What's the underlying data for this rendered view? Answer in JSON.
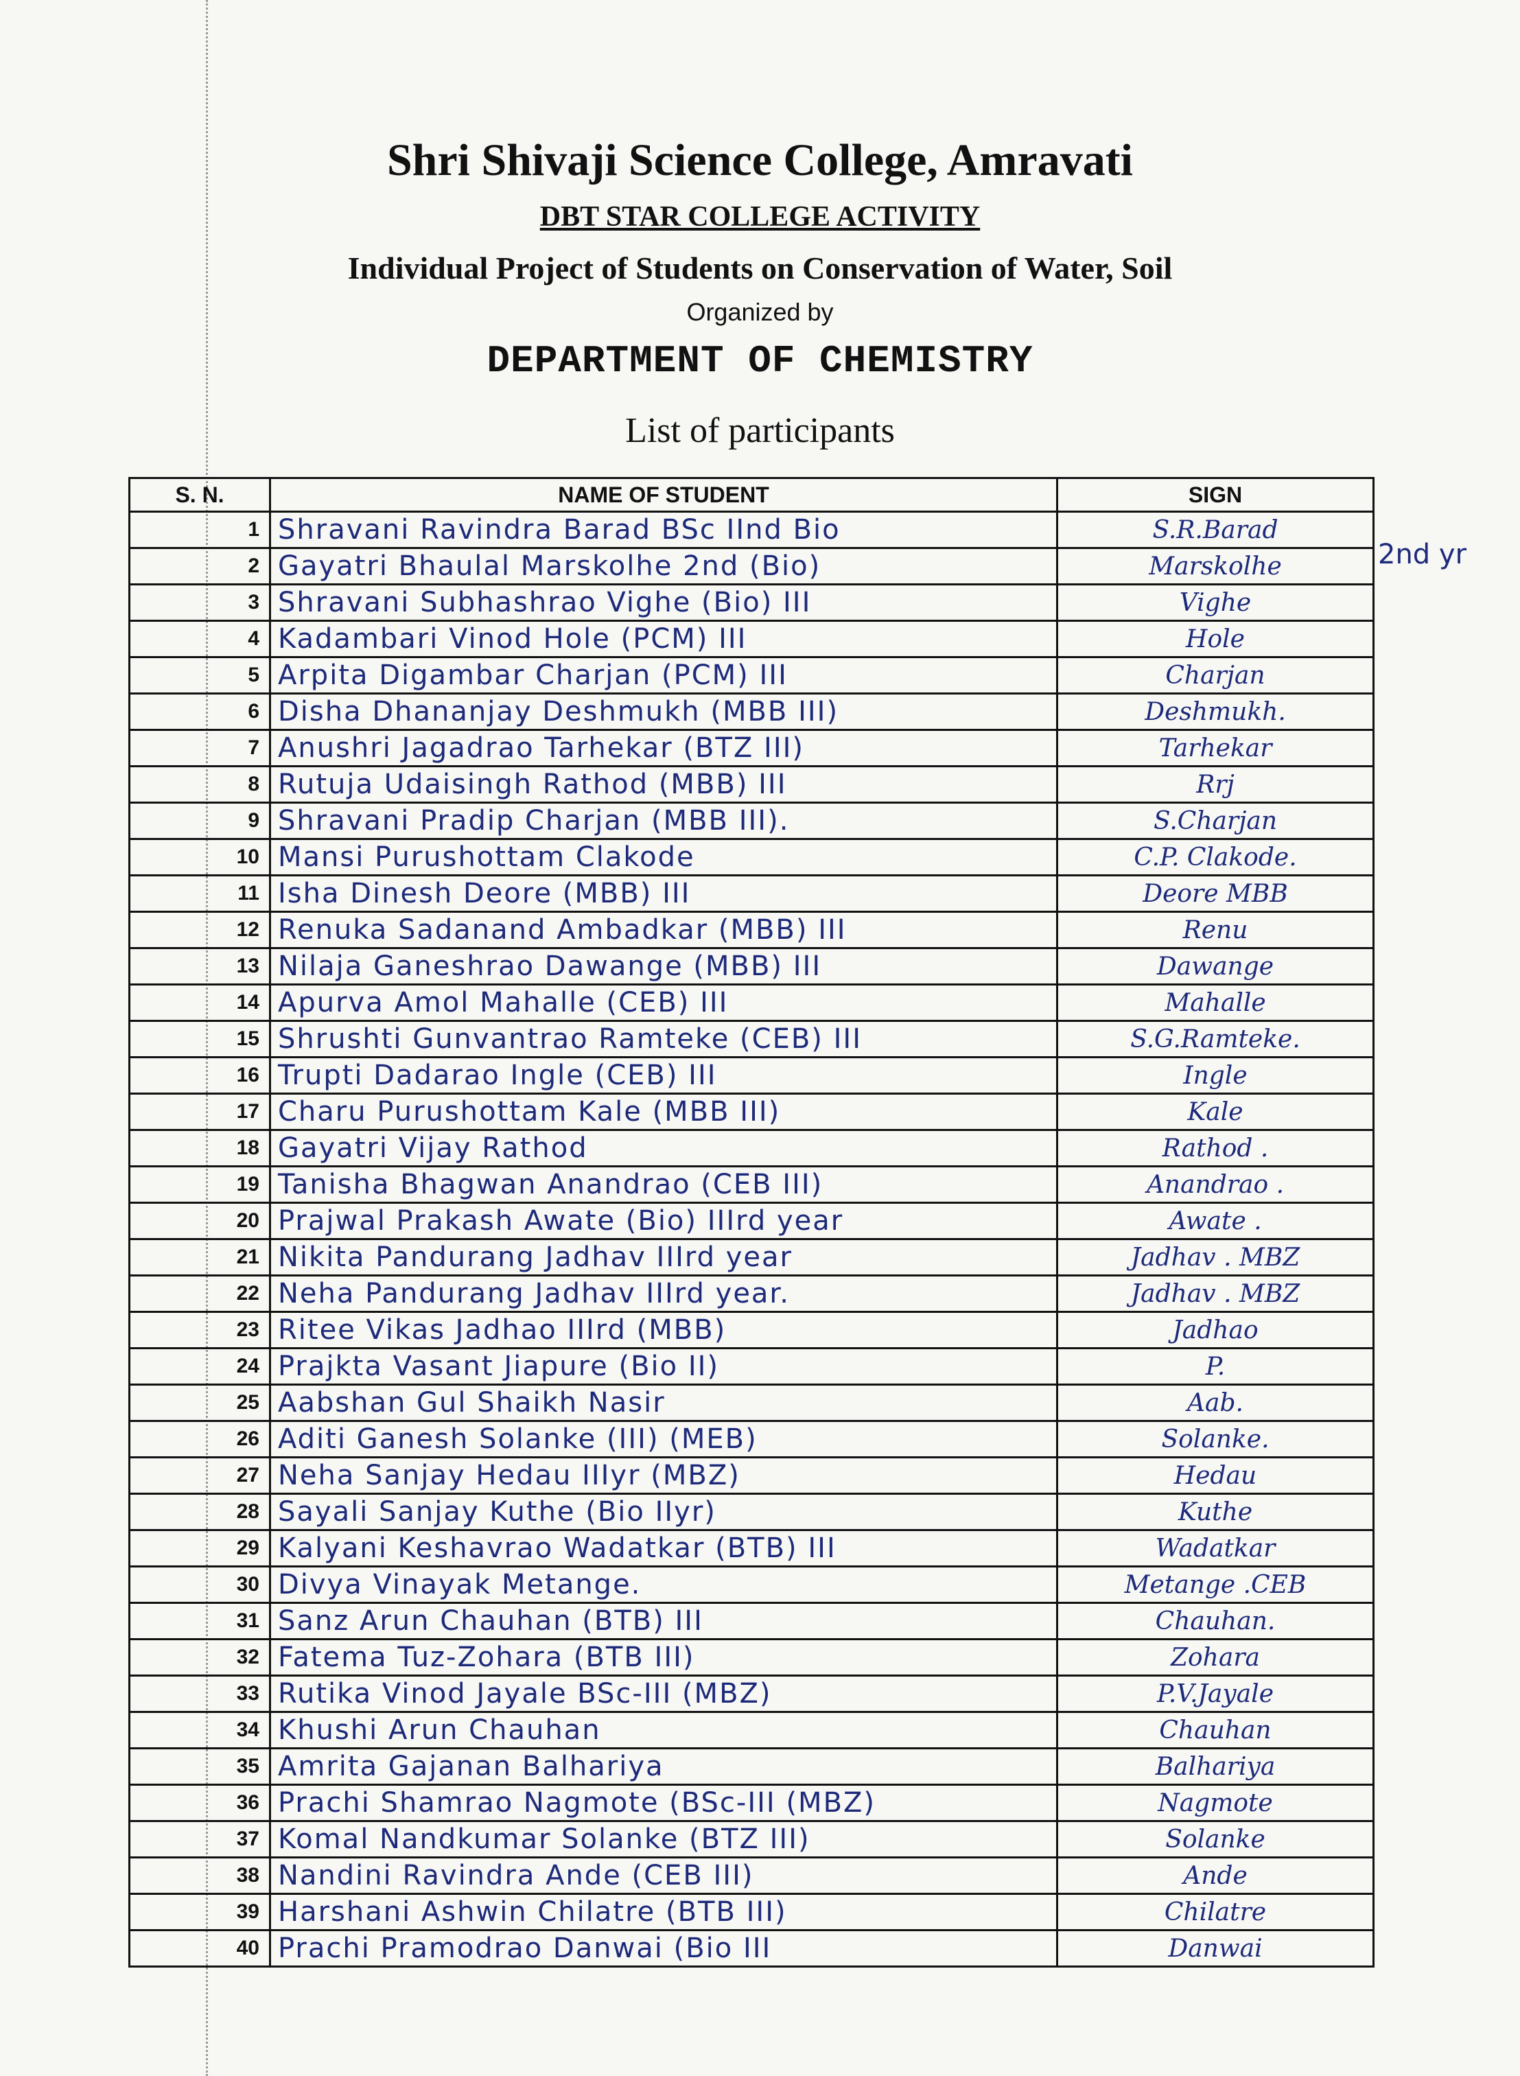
{
  "header": {
    "college": "Shri Shivaji Science College, Amravati",
    "activity": "DBT STAR COLLEGE ACTIVITY",
    "project": "Individual Project of Students on Conservation of Water, Soil",
    "organized_by": "Organized by",
    "department": "DEPARTMENT OF CHEMISTRY",
    "list_title": "List of participants"
  },
  "table": {
    "columns": [
      "S. N.",
      "NAME OF STUDENT",
      "SIGN"
    ],
    "rows": [
      {
        "sn": "1",
        "name": "Shravani Ravindra Barad BSc IInd Bio",
        "sign": "S.R.Barad"
      },
      {
        "sn": "2",
        "name": "Gayatri Bhaulal Marskolhe 2nd (Bio)",
        "sign": "Marskolhe"
      },
      {
        "sn": "3",
        "name": "Shravani Subhashrao Vighe (Bio) III",
        "sign": "Vighe"
      },
      {
        "sn": "4",
        "name": "Kadambari Vinod Hole (PCM) III",
        "sign": "Hole"
      },
      {
        "sn": "5",
        "name": "Arpita Digambar Charjan (PCM) III",
        "sign": "Charjan"
      },
      {
        "sn": "6",
        "name": "Disha Dhananjay Deshmukh (MBB III)",
        "sign": "Deshmukh."
      },
      {
        "sn": "7",
        "name": "Anushri Jagadrao Tarhekar (BTZ III)",
        "sign": "Tarhekar"
      },
      {
        "sn": "8",
        "name": "Rutuja Udaisingh Rathod (MBB) III",
        "sign": "Rrj"
      },
      {
        "sn": "9",
        "name": "Shravani Pradip Charjan (MBB III).",
        "sign": "S.Charjan"
      },
      {
        "sn": "10",
        "name": "Mansi Purushottam Clakode",
        "sign": "C.P. Clakode."
      },
      {
        "sn": "11",
        "name": "Isha Dinesh Deore (MBB) III",
        "sign": "Deore MBB"
      },
      {
        "sn": "12",
        "name": "Renuka Sadanand Ambadkar (MBB) III",
        "sign": "Renu"
      },
      {
        "sn": "13",
        "name": "Nilaja Ganeshrao Dawange (MBB) III",
        "sign": "Dawange"
      },
      {
        "sn": "14",
        "name": "Apurva Amol Mahalle (CEB) III",
        "sign": "Mahalle"
      },
      {
        "sn": "15",
        "name": "Shrushti Gunvantrao Ramteke (CEB) III",
        "sign": "S.G.Ramteke."
      },
      {
        "sn": "16",
        "name": "Trupti Dadarao Ingle (CEB) III",
        "sign": "Ingle"
      },
      {
        "sn": "17",
        "name": "Charu Purushottam Kale (MBB III)",
        "sign": "Kale"
      },
      {
        "sn": "18",
        "name": "Gayatri Vijay Rathod",
        "sign": "Rathod ."
      },
      {
        "sn": "19",
        "name": "Tanisha Bhagwan Anandrao (CEB III)",
        "sign": "Anandrao ."
      },
      {
        "sn": "20",
        "name": "Prajwal Prakash Awate (Bio) IIIrd year",
        "sign": "Awate ."
      },
      {
        "sn": "21",
        "name": "Nikita Pandurang Jadhav IIIrd year",
        "sign": "Jadhav . MBZ"
      },
      {
        "sn": "22",
        "name": "Neha Pandurang Jadhav IIIrd year.",
        "sign": "Jadhav . MBZ"
      },
      {
        "sn": "23",
        "name": "Ritee Vikas Jadhao IIIrd (MBB)",
        "sign": "Jadhao"
      },
      {
        "sn": "24",
        "name": "Prajkta Vasant Jiapure (Bio II)",
        "sign": "P."
      },
      {
        "sn": "25",
        "name": "Aabshan Gul Shaikh Nasir",
        "sign": "Aab."
      },
      {
        "sn": "26",
        "name": "Aditi Ganesh Solanke (III) (MEB)",
        "sign": "Solanke."
      },
      {
        "sn": "27",
        "name": "Neha Sanjay Hedau IIIyr (MBZ)",
        "sign": "Hedau"
      },
      {
        "sn": "28",
        "name": "Sayali Sanjay Kuthe (Bio IIyr)",
        "sign": "Kuthe"
      },
      {
        "sn": "29",
        "name": "Kalyani Keshavrao Wadatkar (BTB) III",
        "sign": "Wadatkar"
      },
      {
        "sn": "30",
        "name": "Divya Vinayak Metange.",
        "sign": "Metange .CEB"
      },
      {
        "sn": "31",
        "name": "Sanz Arun Chauhan (BTB) III",
        "sign": "Chauhan."
      },
      {
        "sn": "32",
        "name": "Fatema Tuz-Zohara (BTB III)",
        "sign": "Zohara"
      },
      {
        "sn": "33",
        "name": "Rutika Vinod Jayale BSc-III (MBZ)",
        "sign": "P.V.Jayale"
      },
      {
        "sn": "34",
        "name": "Khushi Arun Chauhan",
        "sign": "Chauhan"
      },
      {
        "sn": "35",
        "name": "Amrita Gajanan Balhariya",
        "sign": "Balhariya"
      },
      {
        "sn": "36",
        "name": "Prachi Shamrao Nagmote (BSc-III (MBZ)",
        "sign": "Nagmote"
      },
      {
        "sn": "37",
        "name": "Komal Nandkumar Solanke (BTZ III)",
        "sign": "Solanke"
      },
      {
        "sn": "38",
        "name": "Nandini Ravindra Ande (CEB III)",
        "sign": "Ande"
      },
      {
        "sn": "39",
        "name": "Harshani Ashwin Chilatre (BTB III)",
        "sign": "Chilatre"
      },
      {
        "sn": "40",
        "name": "Prachi Pramodrao Danwai (Bio III",
        "sign": "Danwai"
      }
    ]
  },
  "margin_note": "2nd yr"
}
